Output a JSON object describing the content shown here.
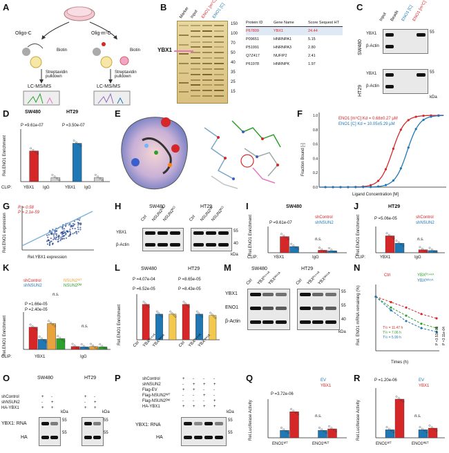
{
  "panels": {
    "A": {
      "label": "A",
      "oligo_c": "Oligo-C",
      "oligo_m5c": "Olig-m⁵C",
      "biotin": "Biotin",
      "pulldown": "Streptavidin pulldown",
      "ms": "LC-MS/MS"
    },
    "B": {
      "label": "B",
      "lanes": [
        "Marker",
        "Input",
        "ENO1 [m⁵C]",
        "ENO1 [C]"
      ],
      "ybx1": "YBX1",
      "mw": [
        "150",
        "100",
        "70",
        "50",
        "40",
        "35",
        "25",
        "15"
      ],
      "table_header": [
        "Protein ID",
        "Gene Name",
        "Score Sequest HT"
      ],
      "table_rows": [
        [
          "P67809",
          "YBX1",
          "24.44"
        ],
        [
          "P09651",
          "HNRNPA1",
          "5.15"
        ],
        [
          "P51991",
          "HNRNPA3",
          "2.80"
        ],
        [
          "Q7Z417",
          "NUFIP2",
          "2.41"
        ],
        [
          "P61978",
          "HNRNPK",
          "1.97"
        ]
      ]
    },
    "C": {
      "label": "C",
      "lanes": [
        "Input",
        "Beads",
        "ENO1 [C]",
        "ENO1 [m⁵C]"
      ],
      "cells": [
        "SW480",
        "HT29"
      ],
      "rows": [
        "YBX1",
        "β-Actin"
      ],
      "mw": "55",
      "kda": "kDa"
    },
    "D": {
      "label": "D",
      "ylabel": "Rel.ENO1 Enrichment",
      "cells": [
        "SW480",
        "HT29"
      ],
      "p": [
        "P =9.61e-07",
        "P =3.50e-07"
      ],
      "xticks": [
        "YBX1",
        "IgG",
        "YBX1",
        "IgG"
      ],
      "clip": "CLIP:"
    },
    "E": {
      "label": "E"
    },
    "F": {
      "label": "F",
      "ylabel": "Fraction Bound [-]",
      "xlabel": "Ligand Concentration [M]",
      "legend": [
        "ENO1 [m⁵C]  Kd = 0.68±0.27 μM",
        "ENO1 [C]  Kd = 10.05±5.29 μM"
      ],
      "xticks": [
        "10⁻¹²",
        "10⁻¹¹",
        "10⁻¹⁰",
        "10⁻⁹",
        "10⁻⁸",
        "10⁻⁷",
        "10⁻⁶",
        "10⁻⁵",
        "10⁻⁴",
        "10⁻³",
        "10⁻²"
      ],
      "yticks": [
        "0.0",
        "0.2",
        "0.4",
        "0.6",
        "0.8",
        "1.0"
      ]
    },
    "G": {
      "label": "G",
      "r": "R = 0.58",
      "p": "P = 2.1e-59",
      "ylabel": "Rel.ENO1 expression",
      "xlabel": "Rel.YBX1 expression",
      "xticks": [
        "6",
        "8",
        "10",
        "12"
      ],
      "yticks": [
        "6",
        "8",
        "10",
        "12",
        "14"
      ]
    },
    "H": {
      "label": "H",
      "cells": [
        "SW480",
        "HT29"
      ],
      "lanes": [
        "Ctrl",
        "NSUN2ᴼᴱ",
        "NSUN2ᴷᴼ"
      ],
      "rows": [
        "YBX1",
        "β-Actin"
      ],
      "mw": [
        "55",
        "40"
      ],
      "kda": "kDa"
    },
    "I": {
      "label": "I",
      "title": "SW480",
      "legend": [
        "shControl",
        "shNSUN2"
      ],
      "p": "P =9.61e-07",
      "ns": "n.s.",
      "ylabel": "Rel.ENO1 Enrichment",
      "xticks": [
        "YBX1",
        "IgG"
      ],
      "clip": "CLIP:"
    },
    "J": {
      "label": "J",
      "title": "HT29",
      "legend": [
        "shControl",
        "shNSUN2"
      ],
      "p": "P =5.06e-05",
      "ns": "n.s.",
      "ylabel": "Rel.ENO1 Enrichment",
      "xticks": [
        "YBX1",
        "IgG"
      ],
      "clip": "CLIP:"
    },
    "K": {
      "label": "K",
      "legend": [
        "shControl",
        "shNSUN2",
        "NSUN2ᵂᵀ",
        "NSUN2ᴰᴹ"
      ],
      "p": [
        "P =1.66e-05",
        "P =2.40e-05"
      ],
      "ns": "n.s.",
      "ylabel": "Rel.ENO1 Enrichment",
      "xticks": [
        "YBX1",
        "IgG"
      ],
      "clip": "CLIP:"
    },
    "L": {
      "label": "L",
      "cells": [
        "SW480",
        "HT29"
      ],
      "p": [
        "P =4.07e-04",
        "P =6.52e-05",
        "P =8.65e-05",
        "P =8.43e-05"
      ],
      "ylabel": "Rel.ENO1 Enrichment",
      "xticks": [
        "Ctrl",
        "YBXᴾ¹⁴⁴ᴬ",
        "YBXᵂ⁶⁵ᴬ"
      ]
    },
    "M": {
      "label": "M",
      "cells": [
        "SW480",
        "HT29"
      ],
      "lanes": [
        "Ctrl",
        "YBXᴾ¹⁴⁴ᴬ",
        "YBXᵂ⁶⁵ᴬ"
      ],
      "rows": [
        "YBX1",
        "ENO1",
        "β-Actin"
      ],
      "mw": [
        "55",
        "55",
        "40"
      ],
      "kda": "kDa"
    },
    "N": {
      "label": "N",
      "legend": [
        "Ctrl",
        "YBXᴾ¹⁴⁴ᴬ",
        "YBXᵂ⁶⁵ᴬ"
      ],
      "halflife": [
        "T½ = 11.47 h",
        "T½ = 7.06 h",
        "T½ = 5.99 h"
      ],
      "p": [
        "P =3.53e-03",
        "P =3.11e-04"
      ],
      "ylabel": "Rel. ENO1 mRNA remaining (%)",
      "xlabel": "Times (h)",
      "xticks": [
        "0",
        "2",
        "4",
        "6",
        "8"
      ],
      "yticks": [
        "0",
        "20",
        "40",
        "60",
        "80",
        "100",
        "120"
      ]
    },
    "O": {
      "label": "O",
      "cells": [
        "SW480",
        "HT29"
      ],
      "conds": [
        "shControl",
        "shNSUN2",
        "HA-YBX1"
      ],
      "signs": [
        [
          "+",
          "-"
        ],
        [
          "-",
          "+"
        ],
        [
          "+",
          "+"
        ]
      ],
      "rows": [
        "YBX1: RNA",
        "HA"
      ],
      "mw": "55",
      "kda": "kDa"
    },
    "P": {
      "label": "P",
      "conds": [
        "shControl",
        "shNSUN2",
        "Flag-EV",
        "Flag-NSUN2ᵂᵀ",
        "Flag-NSUN2ᴰᴹ",
        "HA-YBX1"
      ],
      "signs": [
        [
          "+",
          "-",
          "-",
          "-"
        ],
        [
          "-",
          "+",
          "+",
          "+"
        ],
        [
          "+",
          "+",
          "-",
          "-"
        ],
        [
          "-",
          "-",
          "+",
          "-"
        ],
        [
          "-",
          "-",
          "-",
          "+"
        ],
        [
          "+",
          "+",
          "+",
          "+"
        ]
      ],
      "rows": [
        "YBX1: RNA",
        "HA"
      ],
      "mw": "55",
      "kda": "kDa"
    },
    "Q": {
      "label": "Q",
      "legend": [
        "EV",
        "YBX1"
      ],
      "p": "P =3.72e-06",
      "ns": "n.s.",
      "ylabel": "Rel.Luciferase Activity",
      "xticks": [
        "ENO1ᵂᵀ",
        "ENO1ᴹᵁᵀ"
      ]
    },
    "R": {
      "label": "R",
      "legend": [
        "EV",
        "YBX1"
      ],
      "p": "P =1.20e-06",
      "ns": "n.s.",
      "ylabel": "Rel.Luciferase Activity",
      "xticks": [
        "ENO1ᵂᵀ",
        "ENO1ᴹᵁᵀ"
      ]
    }
  },
  "colors": {
    "red": "#d62728",
    "blue": "#1f77b4",
    "green": "#2ca02c",
    "orange": "#e8a33d",
    "pink": "#f4a3a8",
    "lightblue": "#7fb3d8"
  },
  "chart_data": [
    {
      "panel": "D",
      "type": "bar",
      "categories": [
        "SW480 YBX1",
        "SW480 IgG",
        "HT29 YBX1",
        "HT29 IgG"
      ],
      "values": [
        0.6,
        0.08,
        0.75,
        0.08
      ],
      "ylim": [
        0,
        1.0
      ]
    },
    {
      "panel": "F",
      "type": "line",
      "series": [
        {
          "name": "ENO1 [m⁵C]",
          "kd_uM": 0.68
        },
        {
          "name": "ENO1 [C]",
          "kd_uM": 10.05
        }
      ],
      "ylim": [
        0,
        1.0
      ]
    },
    {
      "panel": "G",
      "type": "scatter",
      "r": 0.58,
      "p": "2.1e-59"
    },
    {
      "panel": "I",
      "type": "bar",
      "categories": [
        "YBX1",
        "IgG"
      ],
      "series": [
        {
          "name": "shControl",
          "values": [
            0.65,
            0.1
          ]
        },
        {
          "name": "shNSUN2",
          "values": [
            0.25,
            0.08
          ]
        }
      ],
      "ylim": [
        0,
        1.0
      ]
    },
    {
      "panel": "J",
      "type": "bar",
      "categories": [
        "YBX1",
        "IgG"
      ],
      "series": [
        {
          "name": "shControl",
          "values": [
            0.68,
            0.12
          ]
        },
        {
          "name": "shNSUN2",
          "values": [
            0.38,
            0.09
          ]
        }
      ],
      "ylim": [
        0,
        1.0
      ]
    },
    {
      "panel": "K",
      "type": "bar",
      "categories": [
        "YBX1",
        "IgG"
      ],
      "series": [
        {
          "name": "shControl",
          "values": [
            0.62,
            0.08
          ]
        },
        {
          "name": "shNSUN2",
          "values": [
            0.28,
            0.07
          ]
        },
        {
          "name": "NSUN2 WT",
          "values": [
            0.72,
            0.08
          ]
        },
        {
          "name": "NSUN2 DM",
          "values": [
            0.3,
            0.07
          ]
        }
      ],
      "ylim": [
        0,
        1.0
      ]
    },
    {
      "panel": "L",
      "type": "bar",
      "categories": [
        "SW480 Ctrl",
        "SW480 YBX P144A",
        "SW480 YBX W65A",
        "HT29 Ctrl",
        "HT29 YBX P144A",
        "HT29 YBX W65A"
      ],
      "values": [
        0.8,
        0.58,
        0.58,
        0.8,
        0.58,
        0.55
      ],
      "ylim": [
        0,
        1.0
      ]
    },
    {
      "panel": "N",
      "type": "line",
      "x": [
        0,
        2,
        4,
        6,
        8
      ],
      "series": [
        {
          "name": "Ctrl",
          "values": [
            100,
            90,
            80,
            68,
            60
          ]
        },
        {
          "name": "YBX P144A",
          "values": [
            100,
            80,
            65,
            50,
            42
          ]
        },
        {
          "name": "YBX W65A",
          "values": [
            100,
            75,
            55,
            42,
            35
          ]
        }
      ],
      "ylim": [
        0,
        120
      ]
    },
    {
      "panel": "Q",
      "type": "bar",
      "categories": [
        "ENO1 WT",
        "ENO1 MUT"
      ],
      "series": [
        {
          "name": "EV",
          "values": [
            1.0,
            1.0
          ]
        },
        {
          "name": "YBX1",
          "values": [
            3.5,
            1.2
          ]
        }
      ],
      "ylim": [
        0,
        5
      ]
    },
    {
      "panel": "R",
      "type": "bar",
      "categories": [
        "ENO1 WT",
        "ENO1 MUT"
      ],
      "series": [
        {
          "name": "EV",
          "values": [
            1.0,
            1.0
          ]
        },
        {
          "name": "YBX1",
          "values": [
            4.8,
            1.2
          ]
        }
      ],
      "ylim": [
        0,
        6
      ]
    }
  ]
}
